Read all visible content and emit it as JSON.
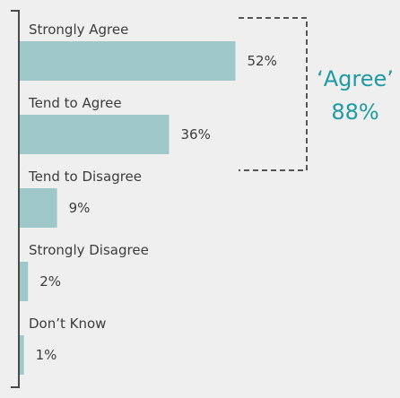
{
  "chart_data": {
    "type": "bar",
    "orientation": "horizontal",
    "categories": [
      "Strongly Agree",
      "Tend to Agree",
      "Tend to Disagree",
      "Strongly Disagree",
      "Don’t Know"
    ],
    "values": [
      52,
      36,
      9,
      2,
      1
    ],
    "value_labels": [
      "52%",
      "36%",
      "9%",
      "2%",
      "1%"
    ],
    "xlim": [
      0,
      100
    ],
    "title": "",
    "xlabel": "",
    "ylabel": "",
    "grid": false,
    "bar_color": "#9fc8ca",
    "annotation": {
      "line1": "‘Agree’",
      "line2": "88%",
      "color": "#1f9aa5",
      "brackets_categories": [
        "Strongly Agree",
        "Tend to Agree"
      ]
    }
  }
}
